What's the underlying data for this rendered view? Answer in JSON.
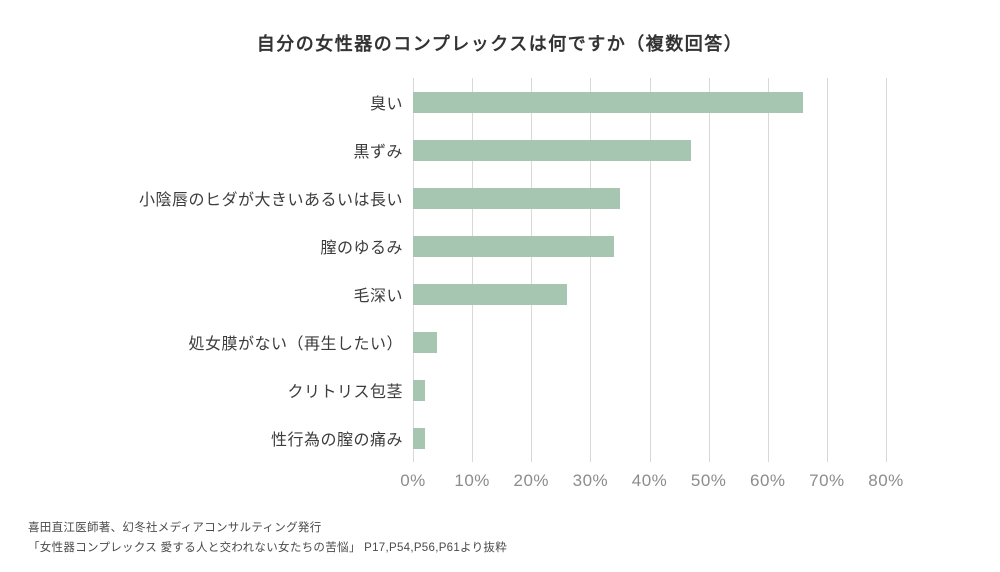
{
  "title": "自分の女性器のコンプレックスは何ですか（複数回答）",
  "colors": {
    "bar": "#a6c6b2",
    "grid": "#d8d8d8",
    "axis_text": "#8c8c8c",
    "label_text": "#3c3c3c"
  },
  "chart_data": {
    "type": "bar",
    "orientation": "horizontal",
    "title": "自分の女性器のコンプレックスは何ですか（複数回答）",
    "categories": [
      "臭い",
      "黒ずみ",
      "小陰唇のヒダが大きいあるいは長い",
      "膣のゆるみ",
      "毛深い",
      "処女膜がない（再生したい）",
      "クリトリス包茎",
      "性行為の膣の痛み"
    ],
    "values": [
      66,
      47,
      35,
      34,
      26,
      4,
      2,
      2
    ],
    "xlabel": "",
    "ylabel": "",
    "xlim": [
      0,
      80
    ],
    "x_ticks": [
      "0%",
      "10%",
      "20%",
      "30%",
      "40%",
      "50%",
      "60%",
      "70%",
      "80%"
    ],
    "grid": true,
    "legend": false
  },
  "footer": {
    "line1": "喜田直江医師著、幻冬社メディアコンサルティング発行",
    "line2": "「女性器コンプレックス 愛する人と交われない女たちの苦悩」 P17,P54,P56,P61より抜粋"
  }
}
